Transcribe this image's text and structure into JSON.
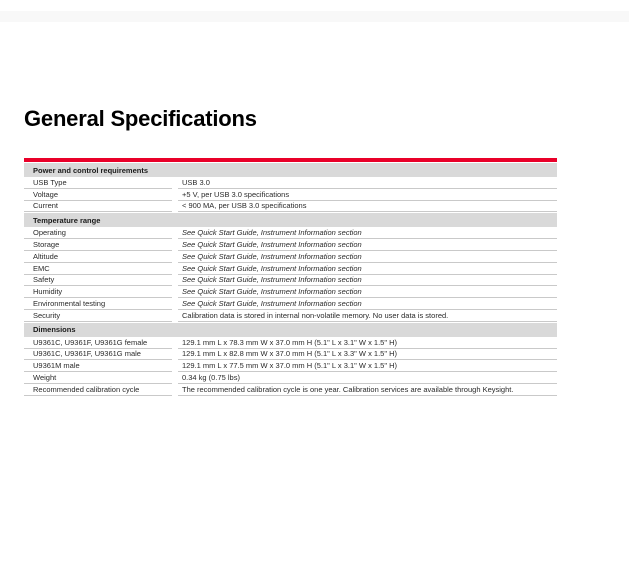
{
  "page": {
    "title": "General Specifications"
  },
  "colors": {
    "accent_red": "#e90029",
    "section_header_bg": "#d9d9d9",
    "row_border": "#c9c9c9"
  },
  "table": {
    "sections": [
      {
        "header": "Power and control requirements",
        "rows": [
          {
            "label": "USB Type",
            "value": "USB 3.0",
            "italic": false
          },
          {
            "label": "Voltage",
            "value": "+5 V, per USB 3.0 specifications",
            "italic": false
          },
          {
            "label": "Current",
            "value": "< 900 MA, per USB 3.0 specifications",
            "italic": false
          }
        ]
      },
      {
        "header": "Temperature range",
        "rows": [
          {
            "label": "Operating",
            "value": "See Quick Start Guide, Instrument Information section",
            "italic": true
          },
          {
            "label": "Storage",
            "value": "See Quick Start Guide, Instrument Information section",
            "italic": true
          },
          {
            "label": "Altitude",
            "value": "See Quick Start Guide, Instrument Information section",
            "italic": true
          },
          {
            "label": "EMC",
            "value": "See Quick Start Guide, Instrument Information section",
            "italic": true
          },
          {
            "label": "Safety",
            "value": "See Quick Start Guide, Instrument Information section",
            "italic": true
          },
          {
            "label": "Humidity",
            "value": "See Quick Start Guide, Instrument Information section",
            "italic": true
          },
          {
            "label": "Environmental testing",
            "value": "See Quick Start Guide, Instrument Information section",
            "italic": true
          },
          {
            "label": "Security",
            "value": "Calibration data is stored in internal non-volatile memory. No user data is stored.",
            "italic": false
          }
        ]
      },
      {
        "header": "Dimensions",
        "rows": [
          {
            "label": "U9361C, U9361F, U9361G female",
            "value": "129.1 mm L x 78.3 mm W x 37.0 mm H (5.1\" L x 3.1\" W x 1.5\" H)",
            "italic": false
          },
          {
            "label": "U9361C, U9361F, U9361G male",
            "value": "129.1 mm L x 82.8 mm W x 37.0 mm H (5.1\" L x 3.3\" W x 1.5\" H)",
            "italic": false
          },
          {
            "label": "U9361M male",
            "value": "129.1 mm L x 77.5 mm W x 37.0 mm H (5.1\" L x 3.1\" W x 1.5\" H)",
            "italic": false
          },
          {
            "label": "Weight",
            "value": "0.34 kg (0.75 lbs)",
            "italic": false
          },
          {
            "label": "Recommended calibration cycle",
            "value": "The recommended calibration cycle is one year. Calibration services are available through Keysight.",
            "italic": false
          }
        ]
      }
    ]
  }
}
